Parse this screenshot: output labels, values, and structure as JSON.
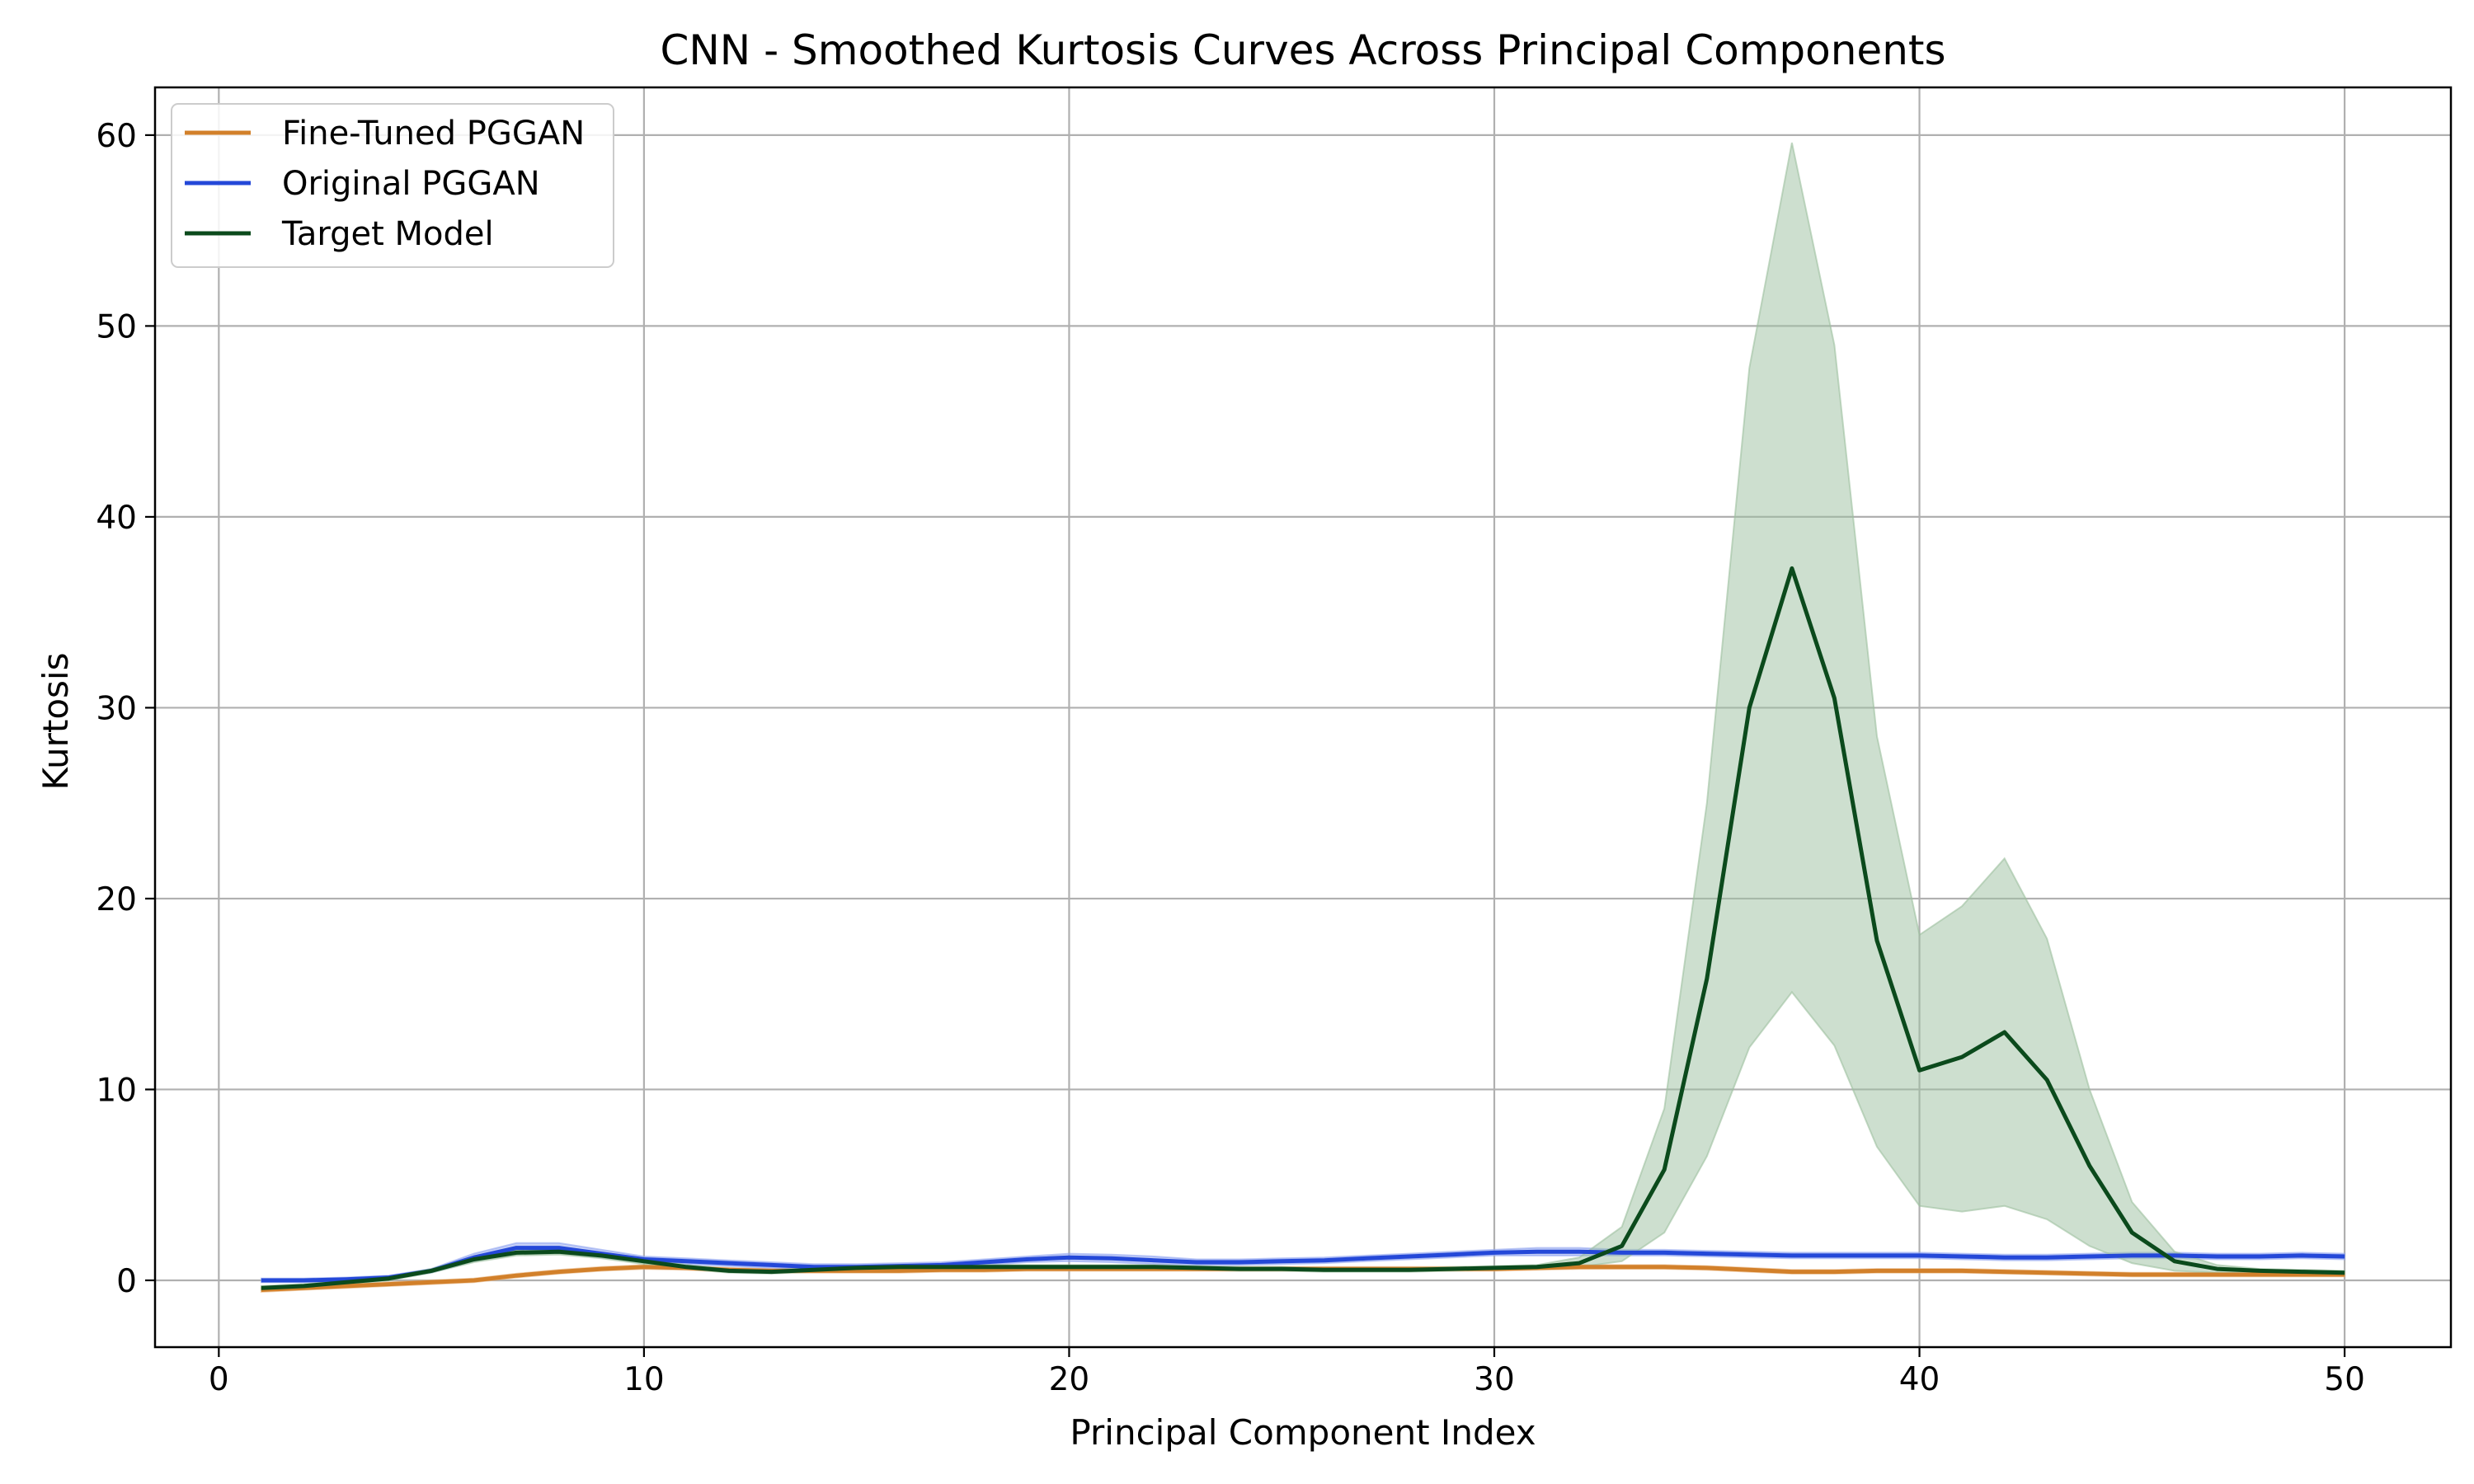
{
  "chart_data": {
    "type": "line",
    "title": "CNN - Smoothed Kurtosis Curves Across Principal Components",
    "xlabel": "Principal Component Index",
    "ylabel": "Kurtosis",
    "xlim": [
      -1.5,
      52.5
    ],
    "ylim": [
      -3.5,
      62.5
    ],
    "xticks": [
      0,
      10,
      20,
      30,
      40,
      50
    ],
    "yticks": [
      0,
      10,
      20,
      30,
      40,
      50,
      60
    ],
    "grid": true,
    "legend": "top-left",
    "x": [
      1,
      2,
      3,
      4,
      5,
      6,
      7,
      8,
      9,
      10,
      11,
      12,
      13,
      14,
      15,
      16,
      17,
      18,
      19,
      20,
      21,
      22,
      23,
      24,
      25,
      26,
      27,
      28,
      29,
      30,
      31,
      32,
      33,
      34,
      35,
      36,
      37,
      38,
      39,
      40,
      41,
      42,
      43,
      44,
      45,
      46,
      47,
      48,
      49,
      50
    ],
    "series": [
      {
        "name": "Fine-Tuned PGGAN",
        "color": "#d2802a",
        "band_color": "#e8b07a",
        "values": [
          -0.5,
          -0.4,
          -0.3,
          -0.2,
          -0.1,
          0.0,
          0.25,
          0.45,
          0.6,
          0.7,
          0.65,
          0.55,
          0.5,
          0.5,
          0.5,
          0.5,
          0.55,
          0.55,
          0.6,
          0.6,
          0.6,
          0.6,
          0.6,
          0.6,
          0.6,
          0.6,
          0.6,
          0.6,
          0.6,
          0.6,
          0.65,
          0.7,
          0.7,
          0.7,
          0.65,
          0.55,
          0.45,
          0.45,
          0.5,
          0.5,
          0.5,
          0.45,
          0.4,
          0.35,
          0.3,
          0.3,
          0.3,
          0.3,
          0.3,
          0.3
        ],
        "lower": [
          -0.6,
          -0.5,
          -0.4,
          -0.3,
          -0.2,
          -0.1,
          0.15,
          0.35,
          0.5,
          0.6,
          0.55,
          0.45,
          0.4,
          0.4,
          0.4,
          0.4,
          0.45,
          0.45,
          0.5,
          0.5,
          0.5,
          0.5,
          0.5,
          0.5,
          0.5,
          0.5,
          0.5,
          0.5,
          0.5,
          0.5,
          0.55,
          0.6,
          0.6,
          0.6,
          0.55,
          0.45,
          0.35,
          0.35,
          0.4,
          0.4,
          0.4,
          0.35,
          0.3,
          0.25,
          0.2,
          0.2,
          0.2,
          0.2,
          0.2,
          0.2
        ],
        "upper": [
          -0.4,
          -0.3,
          -0.2,
          -0.1,
          0.0,
          0.1,
          0.35,
          0.55,
          0.7,
          0.8,
          0.75,
          0.65,
          0.6,
          0.6,
          0.6,
          0.6,
          0.65,
          0.65,
          0.7,
          0.7,
          0.7,
          0.7,
          0.7,
          0.7,
          0.7,
          0.7,
          0.7,
          0.7,
          0.7,
          0.7,
          0.75,
          0.8,
          0.8,
          0.8,
          0.75,
          0.65,
          0.55,
          0.55,
          0.6,
          0.6,
          0.6,
          0.55,
          0.5,
          0.45,
          0.4,
          0.4,
          0.4,
          0.4,
          0.4,
          0.4
        ]
      },
      {
        "name": "Original PGGAN",
        "color": "#2448d8",
        "band_color": "#8fa4f0",
        "values": [
          0.0,
          0.0,
          0.05,
          0.15,
          0.5,
          1.2,
          1.7,
          1.7,
          1.4,
          1.1,
          1.0,
          0.9,
          0.8,
          0.7,
          0.7,
          0.75,
          0.8,
          0.95,
          1.1,
          1.2,
          1.15,
          1.05,
          0.95,
          0.95,
          1.0,
          1.05,
          1.15,
          1.25,
          1.35,
          1.45,
          1.5,
          1.5,
          1.45,
          1.45,
          1.4,
          1.35,
          1.3,
          1.3,
          1.3,
          1.3,
          1.25,
          1.2,
          1.2,
          1.25,
          1.3,
          1.3,
          1.25,
          1.25,
          1.3,
          1.25
        ],
        "lower": [
          -0.1,
          -0.1,
          -0.05,
          0.05,
          0.4,
          1.0,
          1.45,
          1.45,
          1.2,
          0.95,
          0.85,
          0.75,
          0.65,
          0.55,
          0.55,
          0.6,
          0.65,
          0.8,
          0.95,
          1.0,
          0.95,
          0.85,
          0.8,
          0.8,
          0.85,
          0.9,
          1.0,
          1.1,
          1.2,
          1.3,
          1.3,
          1.3,
          1.3,
          1.3,
          1.25,
          1.2,
          1.15,
          1.15,
          1.15,
          1.15,
          1.1,
          1.05,
          1.05,
          1.1,
          1.15,
          1.15,
          1.1,
          1.1,
          1.15,
          1.1
        ],
        "upper": [
          0.1,
          0.1,
          0.15,
          0.25,
          0.6,
          1.4,
          1.95,
          1.95,
          1.6,
          1.25,
          1.15,
          1.05,
          0.95,
          0.85,
          0.85,
          0.9,
          0.95,
          1.1,
          1.25,
          1.4,
          1.35,
          1.25,
          1.1,
          1.1,
          1.15,
          1.2,
          1.3,
          1.4,
          1.5,
          1.6,
          1.7,
          1.7,
          1.6,
          1.6,
          1.55,
          1.5,
          1.45,
          1.45,
          1.45,
          1.45,
          1.4,
          1.35,
          1.35,
          1.4,
          1.45,
          1.45,
          1.4,
          1.4,
          1.45,
          1.4
        ]
      },
      {
        "name": "Target Model",
        "color": "#0b4a1c",
        "band_color": "#9cbf9f",
        "values": [
          -0.4,
          -0.3,
          -0.1,
          0.1,
          0.5,
          1.1,
          1.45,
          1.5,
          1.3,
          1.0,
          0.7,
          0.5,
          0.45,
          0.55,
          0.65,
          0.7,
          0.7,
          0.7,
          0.7,
          0.7,
          0.7,
          0.7,
          0.65,
          0.6,
          0.6,
          0.55,
          0.55,
          0.55,
          0.6,
          0.65,
          0.7,
          0.9,
          1.8,
          5.8,
          15.8,
          30.0,
          37.3,
          30.5,
          17.8,
          11.0,
          11.7,
          13.0,
          10.5,
          6.0,
          2.5,
          1.0,
          0.6,
          0.5,
          0.45,
          0.4
        ],
        "lower": [
          -0.5,
          -0.4,
          -0.2,
          0.0,
          0.4,
          0.95,
          1.3,
          1.35,
          1.15,
          0.85,
          0.6,
          0.4,
          0.35,
          0.45,
          0.55,
          0.6,
          0.6,
          0.6,
          0.6,
          0.6,
          0.6,
          0.6,
          0.55,
          0.5,
          0.5,
          0.45,
          0.45,
          0.45,
          0.5,
          0.55,
          0.6,
          0.7,
          1.0,
          2.5,
          6.5,
          12.2,
          15.1,
          12.3,
          7.0,
          3.9,
          3.6,
          3.9,
          3.2,
          1.8,
          0.9,
          0.5,
          0.4,
          0.35,
          0.3,
          0.3
        ],
        "upper": [
          -0.3,
          -0.2,
          0.0,
          0.2,
          0.6,
          1.25,
          1.6,
          1.65,
          1.45,
          1.15,
          0.8,
          0.6,
          0.55,
          0.65,
          0.75,
          0.8,
          0.8,
          0.8,
          0.8,
          0.8,
          0.8,
          0.8,
          0.75,
          0.7,
          0.7,
          0.65,
          0.65,
          0.65,
          0.7,
          0.75,
          0.8,
          1.2,
          2.8,
          9.0,
          25.0,
          47.8,
          59.6,
          49.0,
          28.5,
          18.1,
          19.6,
          22.1,
          17.9,
          10.0,
          4.1,
          1.5,
          0.8,
          0.6,
          0.55,
          0.5
        ]
      }
    ]
  }
}
